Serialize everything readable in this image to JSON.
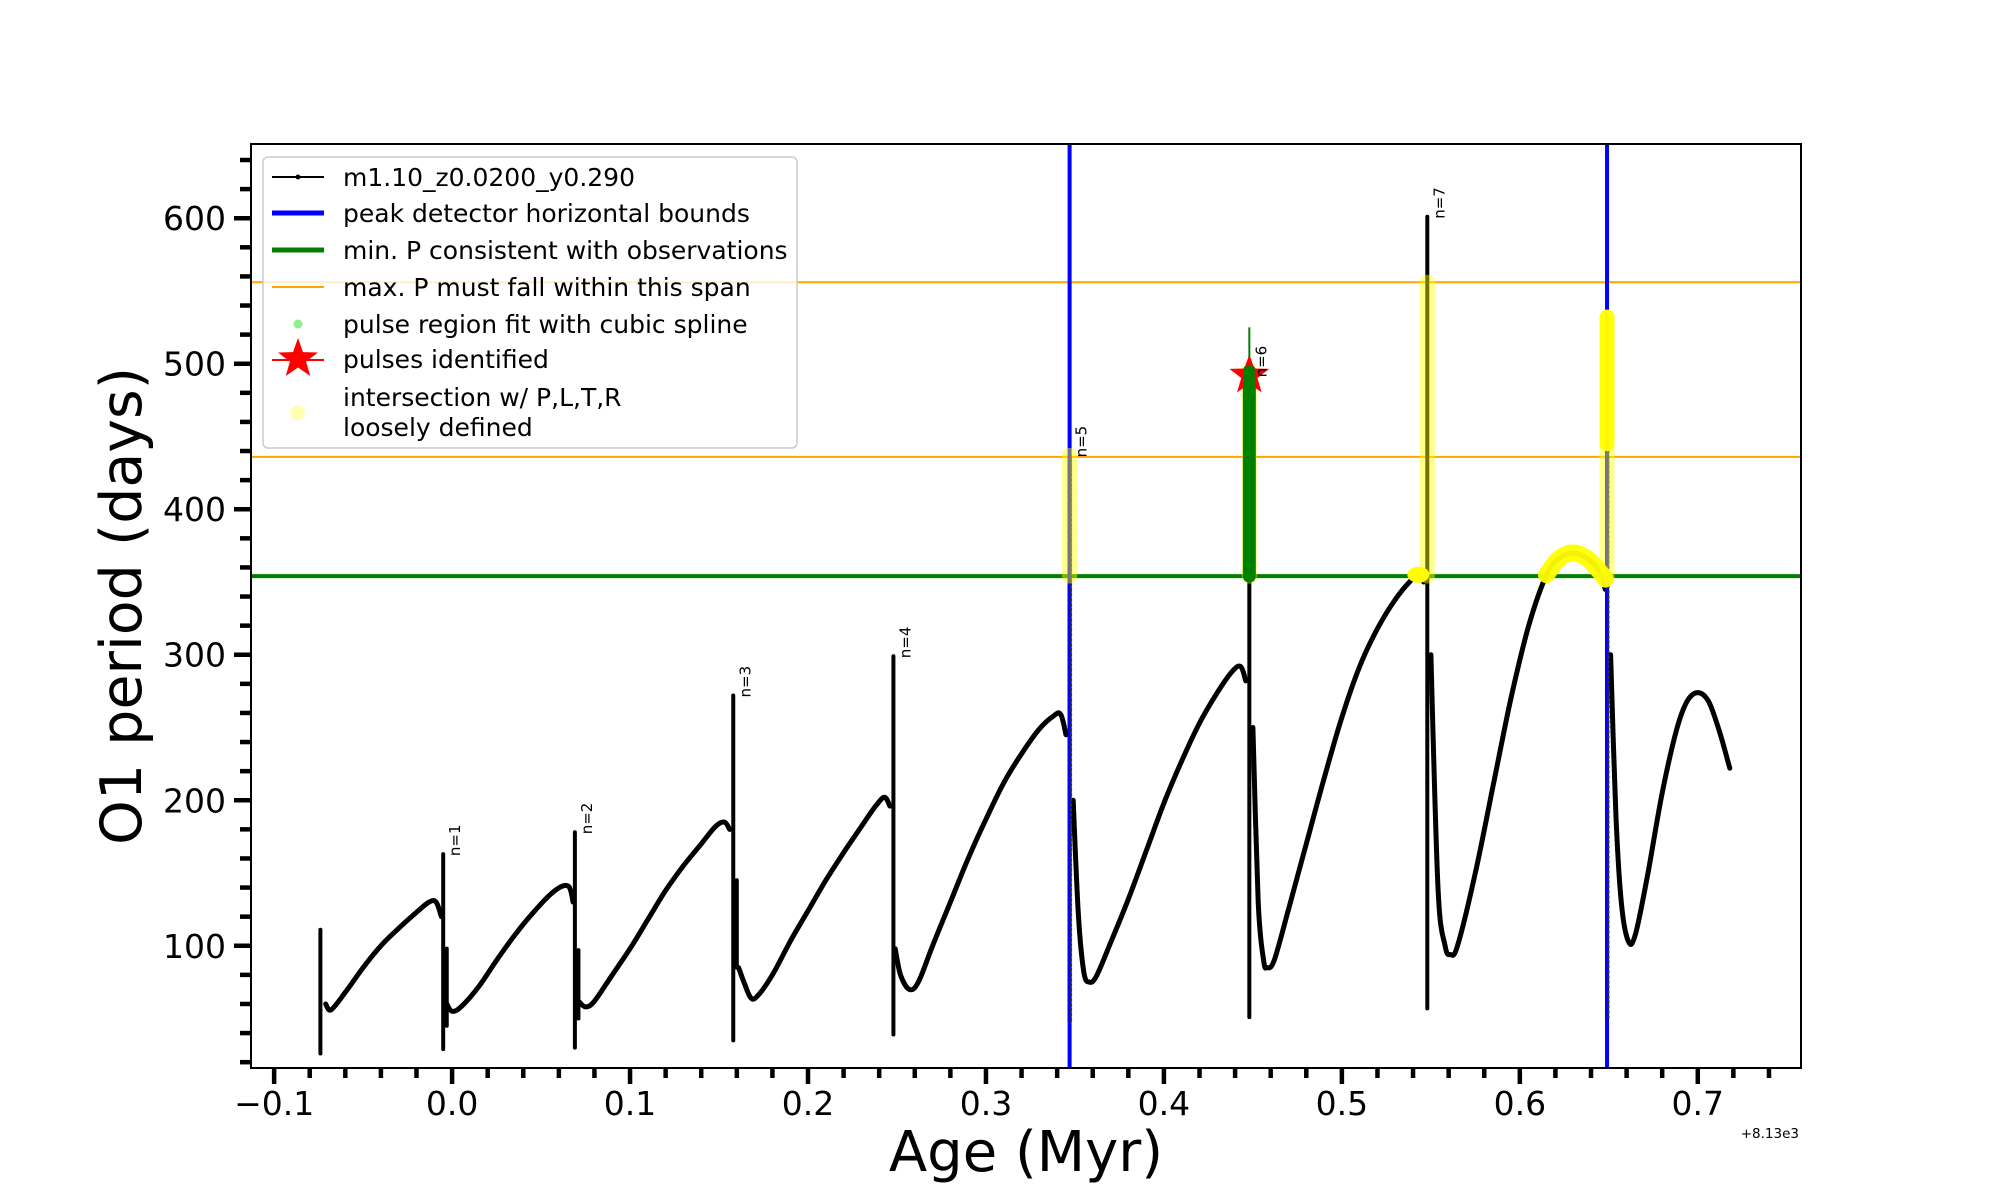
{
  "chart_data": {
    "type": "line",
    "xlabel": "Age (Myr)",
    "ylabel": "O1 period (days)",
    "x_offset_label": "+8.13e3",
    "xlim": [
      -0.113,
      0.758
    ],
    "ylim": [
      16,
      651
    ],
    "grid": false,
    "x_ticks": {
      "values": [
        -0.1,
        0.0,
        0.1,
        0.2,
        0.3,
        0.4,
        0.5,
        0.6,
        0.7
      ],
      "labels": [
        "−0.1",
        "0.0",
        "0.1",
        "0.2",
        "0.3",
        "0.4",
        "0.5",
        "0.6",
        "0.7"
      ]
    },
    "x_minor_step": 0.02,
    "y_ticks": {
      "values": [
        100,
        200,
        300,
        400,
        500,
        600
      ],
      "labels": [
        "100",
        "200",
        "300",
        "400",
        "500",
        "600"
      ]
    },
    "y_minor_step": 20,
    "legend": {
      "placement": "upper left",
      "entries": [
        {
          "label": "m1.10_z0.0200_y0.290",
          "kind": "line-with-dot",
          "color": "#000000"
        },
        {
          "label": "peak detector horizontal bounds",
          "kind": "thick-line",
          "color": "#0000ff"
        },
        {
          "label": "min. P consistent with observations",
          "kind": "thick-line",
          "color": "#008000"
        },
        {
          "label": "max. P must fall within this span",
          "kind": "thin-line",
          "color": "#ffa500"
        },
        {
          "label": "pulse region fit with cubic spline",
          "kind": "dot",
          "color": "#90ee90"
        },
        {
          "label": "pulses identified",
          "kind": "star",
          "color": "#ff0000"
        },
        {
          "label_lines": [
            "intersection w/ P,L,T,R",
            "loosely defined"
          ],
          "kind": "circle",
          "color": "#ffff99"
        }
      ]
    },
    "series": [
      {
        "name": "m1.10_z0.0200_y0.290",
        "color": "#000000",
        "arcs": [
          [
            [
              -0.071,
              60
            ],
            [
              -0.068,
              56
            ],
            [
              -0.06,
              68
            ],
            [
              -0.05,
              85
            ],
            [
              -0.04,
              100
            ],
            [
              -0.03,
              112
            ],
            [
              -0.02,
              123
            ],
            [
              -0.013,
              130
            ],
            [
              -0.009,
              130
            ],
            [
              -0.006,
              120
            ]
          ],
          [
            [
              -0.003,
              60
            ],
            [
              0.0,
              55
            ],
            [
              0.005,
              58
            ],
            [
              0.015,
              72
            ],
            [
              0.025,
              90
            ],
            [
              0.035,
              107
            ],
            [
              0.045,
              122
            ],
            [
              0.055,
              135
            ],
            [
              0.062,
              141
            ],
            [
              0.066,
              140
            ],
            [
              0.068,
              130
            ]
          ],
          [
            [
              0.071,
              62
            ],
            [
              0.075,
              58
            ],
            [
              0.08,
              62
            ],
            [
              0.09,
              80
            ],
            [
              0.1,
              98
            ],
            [
              0.11,
              118
            ],
            [
              0.12,
              138
            ],
            [
              0.13,
              155
            ],
            [
              0.14,
              170
            ],
            [
              0.148,
              182
            ],
            [
              0.153,
              185
            ],
            [
              0.156,
              180
            ]
          ],
          [
            [
              0.161,
              85
            ],
            [
              0.164,
              75
            ],
            [
              0.168,
              64
            ],
            [
              0.172,
              66
            ],
            [
              0.18,
              80
            ],
            [
              0.19,
              103
            ],
            [
              0.2,
              124
            ],
            [
              0.21,
              145
            ],
            [
              0.22,
              164
            ],
            [
              0.23,
              182
            ],
            [
              0.238,
              196
            ],
            [
              0.243,
              202
            ],
            [
              0.246,
              196
            ]
          ],
          [
            [
              0.249,
              98
            ],
            [
              0.252,
              80
            ],
            [
              0.257,
              70
            ],
            [
              0.262,
              75
            ],
            [
              0.27,
              100
            ],
            [
              0.28,
              130
            ],
            [
              0.29,
              160
            ],
            [
              0.3,
              187
            ],
            [
              0.31,
              212
            ],
            [
              0.32,
              232
            ],
            [
              0.33,
              249
            ],
            [
              0.338,
              258
            ],
            [
              0.342,
              259
            ],
            [
              0.345,
              245
            ]
          ],
          [
            [
              0.349,
              200
            ],
            [
              0.352,
              120
            ],
            [
              0.355,
              82
            ],
            [
              0.358,
              75
            ],
            [
              0.362,
              79
            ],
            [
              0.37,
              102
            ],
            [
              0.38,
              132
            ],
            [
              0.39,
              165
            ],
            [
              0.4,
              198
            ],
            [
              0.41,
              227
            ],
            [
              0.42,
              253
            ],
            [
              0.43,
              274
            ],
            [
              0.438,
              288
            ],
            [
              0.443,
              292
            ],
            [
              0.446,
              282
            ]
          ],
          [
            [
              0.45,
              250
            ],
            [
              0.453,
              130
            ],
            [
              0.456,
              90
            ],
            [
              0.458,
              85
            ],
            [
              0.462,
              90
            ],
            [
              0.47,
              125
            ],
            [
              0.48,
              170
            ],
            [
              0.49,
              215
            ],
            [
              0.5,
              257
            ],
            [
              0.51,
              292
            ],
            [
              0.52,
              318
            ],
            [
              0.53,
              338
            ],
            [
              0.538,
              350
            ],
            [
              0.543,
              355
            ],
            [
              0.546,
              350
            ]
          ],
          [
            [
              0.55,
              300
            ],
            [
              0.554,
              140
            ],
            [
              0.558,
              100
            ],
            [
              0.561,
              94
            ],
            [
              0.565,
              100
            ],
            [
              0.575,
              150
            ],
            [
              0.585,
              210
            ],
            [
              0.595,
              270
            ],
            [
              0.605,
              320
            ],
            [
              0.615,
              355
            ],
            [
              0.622,
              366
            ],
            [
              0.63,
              370
            ],
            [
              0.638,
              366
            ],
            [
              0.645,
              357
            ],
            [
              0.648,
              345
            ]
          ],
          [
            [
              0.651,
              300
            ],
            [
              0.654,
              190
            ],
            [
              0.657,
              130
            ],
            [
              0.661,
              103
            ],
            [
              0.665,
              108
            ],
            [
              0.672,
              150
            ],
            [
              0.68,
              205
            ],
            [
              0.688,
              248
            ],
            [
              0.694,
              268
            ],
            [
              0.7,
              274
            ],
            [
              0.706,
              268
            ],
            [
              0.712,
              248
            ],
            [
              0.718,
              222
            ]
          ]
        ],
        "spikes": [
          {
            "x": -0.074,
            "low": 26,
            "high": 111
          },
          {
            "x": -0.005,
            "low": 29,
            "high": 163
          },
          {
            "x": -0.003,
            "low": 45,
            "high": 98
          },
          {
            "x": 0.069,
            "low": 30,
            "high": 178
          },
          {
            "x": 0.071,
            "low": 50,
            "high": 97
          },
          {
            "x": 0.158,
            "low": 35,
            "high": 272
          },
          {
            "x": 0.16,
            "low": 85,
            "high": 145
          },
          {
            "x": 0.248,
            "low": 39,
            "high": 299
          },
          {
            "x": 0.347,
            "low": 48,
            "high": 437
          },
          {
            "x": 0.448,
            "low": 51,
            "high": 495
          },
          {
            "x": 0.548,
            "low": 57,
            "high": 601
          },
          {
            "x": 0.649,
            "low": 50,
            "high": 532
          }
        ]
      }
    ],
    "peak_detector_bounds": {
      "color": "#0000ff",
      "x": [
        0.347,
        0.649
      ]
    },
    "min_period": {
      "color": "#008000",
      "y": 354
    },
    "max_period_span": {
      "color": "#ffa500",
      "y": [
        436,
        556
      ]
    },
    "pulse_region_spline": {
      "color": "#008000",
      "x": 0.448,
      "y_range": [
        354,
        495
      ],
      "tip_to": 525
    },
    "pulses_identified": [
      {
        "x": 0.448,
        "y": 492
      }
    ],
    "intersections": {
      "color": "#ffff00",
      "columns": [
        {
          "x": 0.347,
          "y_range": [
            354,
            437
          ]
        },
        {
          "x": 0.448,
          "y_range": [
            354,
            495
          ]
        },
        {
          "x": 0.548,
          "y_range": [
            354,
            556
          ]
        },
        {
          "x": 0.649,
          "y_range": [
            354,
            532
          ],
          "dense_y_range": [
            445,
            532
          ]
        }
      ],
      "blobs": [
        {
          "x": 0.543,
          "y": 355
        }
      ],
      "arc": [
        [
          0.615,
          355
        ],
        [
          0.622,
          366
        ],
        [
          0.63,
          370
        ],
        [
          0.638,
          366
        ],
        [
          0.645,
          357
        ],
        [
          0.648,
          352
        ]
      ]
    },
    "pulse_labels": [
      {
        "text": "n=1",
        "x": -0.005,
        "y": 163
      },
      {
        "text": "n=2",
        "x": 0.069,
        "y": 178
      },
      {
        "text": "n=3",
        "x": 0.158,
        "y": 272
      },
      {
        "text": "n=4",
        "x": 0.248,
        "y": 299
      },
      {
        "text": "n=5",
        "x": 0.347,
        "y": 437
      },
      {
        "text": "n=6",
        "x": 0.448,
        "y": 492
      },
      {
        "text": "n=7",
        "x": 0.548,
        "y": 601
      }
    ]
  }
}
